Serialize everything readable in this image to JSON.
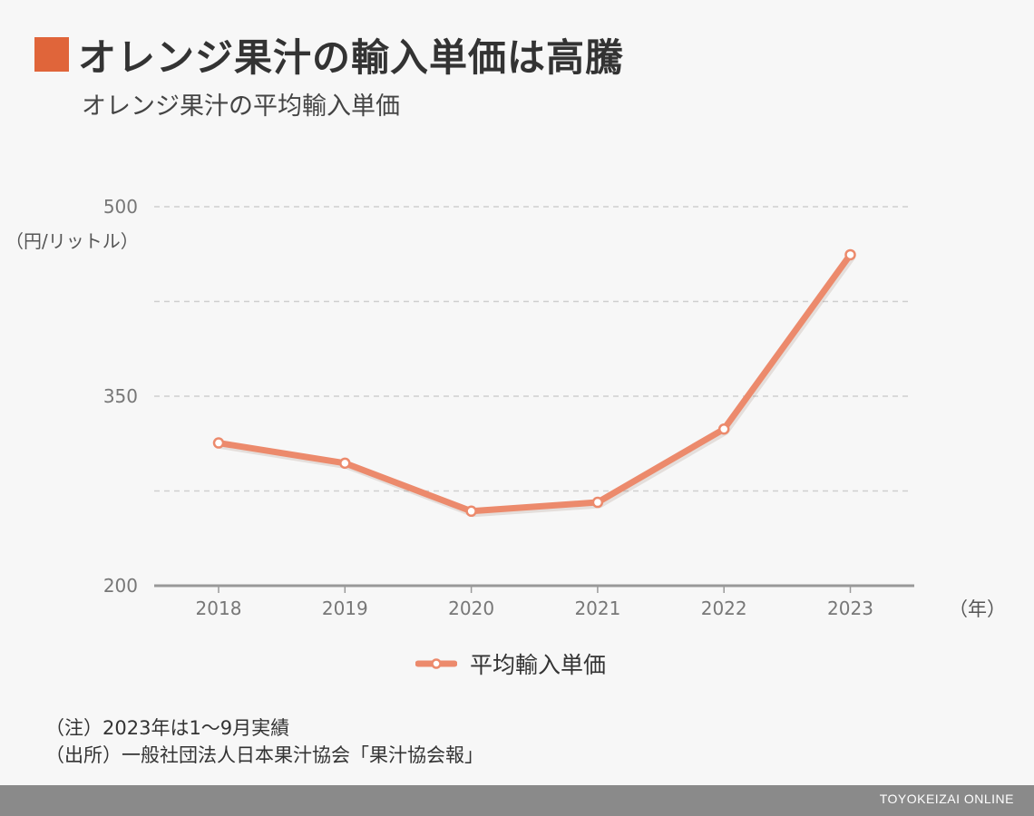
{
  "header": {
    "title": "オレンジ果汁の輸入単価は高騰",
    "subtitle": "オレンジ果汁の平均輸入単価",
    "accent_color": "#e0653a"
  },
  "chart_data": {
    "type": "line",
    "title": "オレンジ果汁の平均輸入単価",
    "x": [
      "2018",
      "2019",
      "2020",
      "2021",
      "2022",
      "2023"
    ],
    "series": [
      {
        "name": "平均輸入単価",
        "values": [
          313,
          297,
          259,
          266,
          324,
          462
        ],
        "color": "#ec8a6c"
      }
    ],
    "ylim": [
      200,
      500
    ],
    "yticks": [
      200,
      350,
      500
    ],
    "ylabel": "（円/リットル）",
    "xlabel": "（年）",
    "grid": true,
    "legend_position": "bottom-center"
  },
  "notes": {
    "note": "（注）2023年は1〜9月実績",
    "source": "（出所）一般社団法人日本果汁協会「果汁協会報」"
  },
  "footer": {
    "brand": "TOYOKEIZAI ONLINE"
  }
}
